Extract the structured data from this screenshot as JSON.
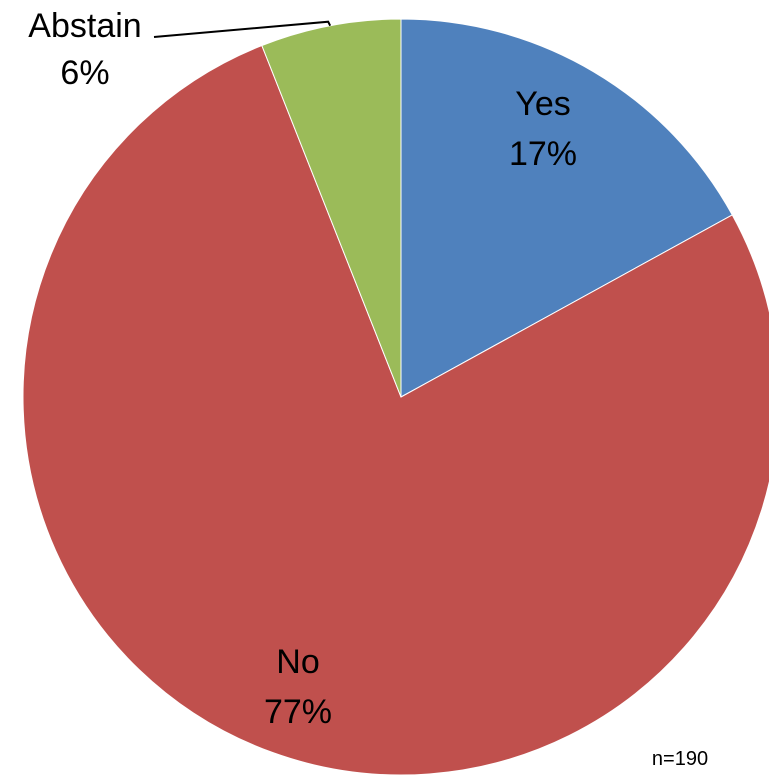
{
  "chart_data": {
    "type": "pie",
    "title": "",
    "slices": [
      {
        "label": "Yes",
        "value": 17,
        "value_label": "17%",
        "color": "#4F81BD",
        "label_color": "#000000"
      },
      {
        "label": "No",
        "value": 77,
        "value_label": "77%",
        "color": "#C0504D",
        "label_color": "#000000"
      },
      {
        "label": "Abstain",
        "value": 6,
        "value_label": "6%",
        "color": "#9BBB59",
        "label_color": "#000000"
      }
    ],
    "start_angle": "12 o'clock",
    "direction": "clockwise",
    "legend": "none",
    "annotation": "n=190"
  }
}
